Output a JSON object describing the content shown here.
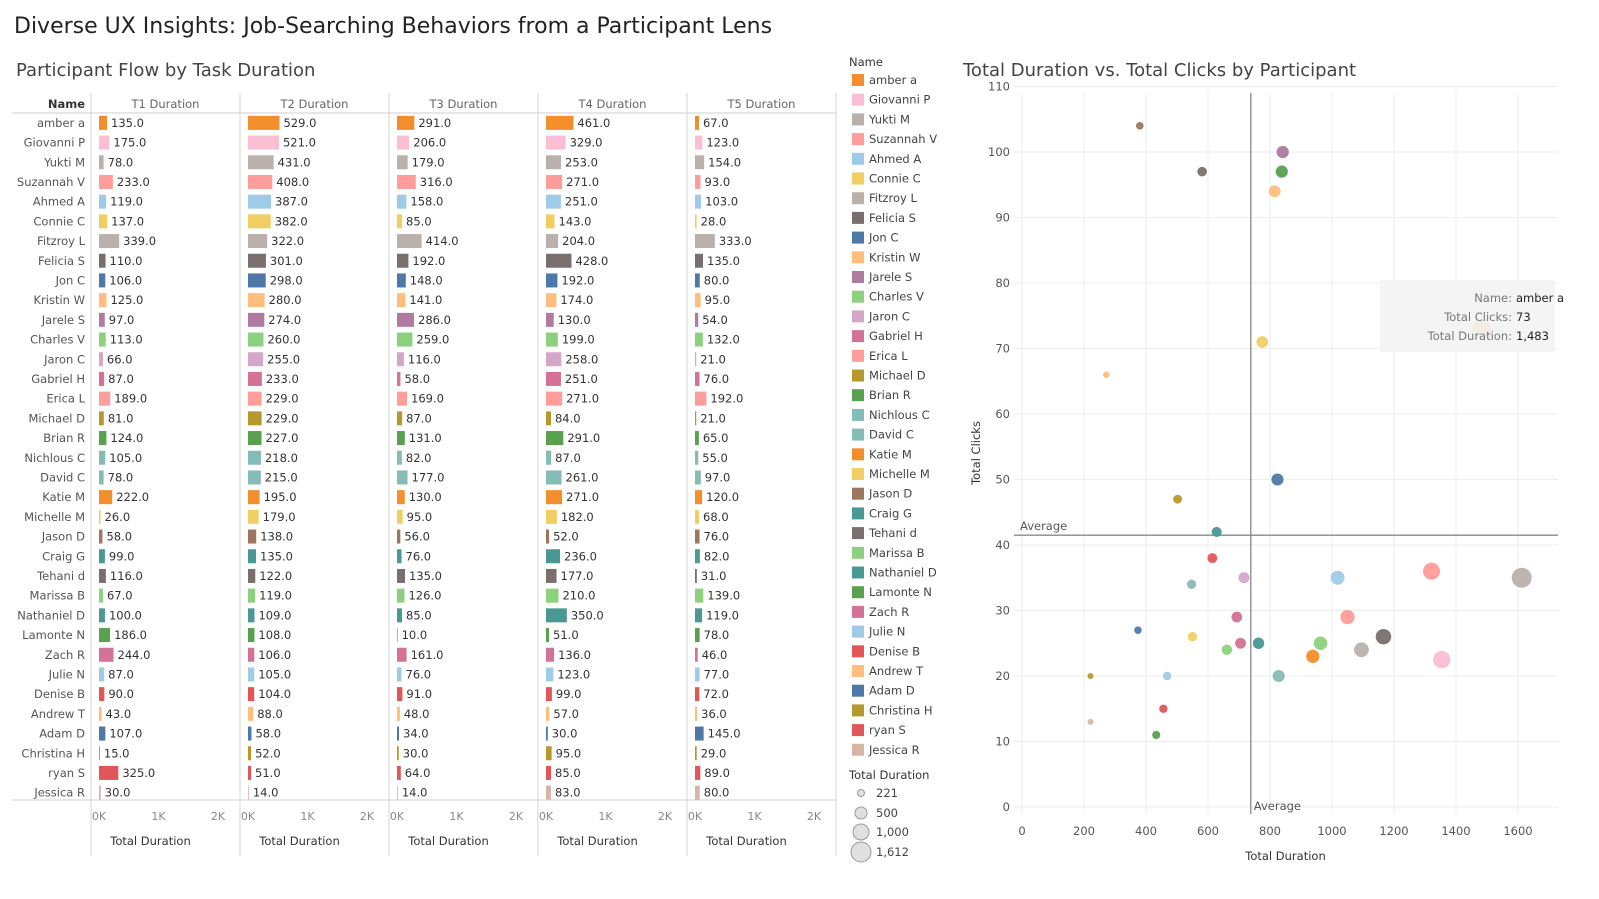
{
  "title": "Diverse UX Insights: Job-Searching Behaviors from a Participant Lens",
  "bar_title": "Participant Flow by Task Duration",
  "scatter_title": "Total Duration vs. Total Clicks by Participant",
  "legend": {
    "name_title": "Name",
    "size_title": "Total Duration",
    "size_values": [
      "221",
      "500",
      "1,000",
      "1,612"
    ]
  },
  "tooltip": {
    "name_label": "Name:",
    "name_value": "amber a",
    "clicks_label": "Total Clicks:",
    "clicks_value": "73",
    "duration_label": "Total Duration:",
    "duration_value": "1,483"
  },
  "chart_data": [
    {
      "type": "bar",
      "name_header": "Name",
      "panels": [
        "T1 Duration",
        "T2 Duration",
        "T3 Duration",
        "T4 Duration",
        "T5 Duration"
      ],
      "xlabel": "Total Duration",
      "xticks": [
        "0K",
        "1K",
        "2K"
      ],
      "xlim": [
        0,
        2300
      ],
      "categories": [
        "amber a",
        "Giovanni P",
        "Yukti M",
        "Suzannah V",
        "Ahmed A",
        "Connie C",
        "Fitzroy L",
        "Felicia S",
        "Jon C",
        "Kristin W",
        "Jarele S",
        "Charles V",
        "Jaron C",
        "Gabriel H",
        "Erica L",
        "Michael D",
        "Brian R",
        "Nichlous C",
        "David C",
        "Katie M",
        "Michelle M",
        "Jason D",
        "Craig G",
        "Tehani d",
        "Marissa B",
        "Nathaniel D",
        "Lamonte N",
        "Zach R",
        "Julie N",
        "Denise  B",
        "Andrew T",
        "Adam D",
        "Christina H",
        "ryan S",
        "Jessica R"
      ],
      "colors": [
        "#f28e2b",
        "#fabfd2",
        "#bab0ac",
        "#ff9d9a",
        "#a0cbe8",
        "#f1ce63",
        "#bab0ac",
        "#79706e",
        "#4e79a7",
        "#ffbe7d",
        "#b07aa1",
        "#8cd17d",
        "#d4a6c8",
        "#d37295",
        "#ff9d9a",
        "#b6992d",
        "#59a14f",
        "#86bcb6",
        "#86bcb6",
        "#f28e2b",
        "#f1ce63",
        "#9d7660",
        "#499894",
        "#79706e",
        "#8cd17d",
        "#499894",
        "#59a14f",
        "#d37295",
        "#a0cbe8",
        "#e15759",
        "#ffbe7d",
        "#4e79a7",
        "#b6992d",
        "#e15759",
        "#d7b5a6"
      ],
      "series": [
        {
          "name": "T1 Duration",
          "values": [
            135,
            175,
            78,
            233,
            119,
            137,
            339,
            110,
            106,
            125,
            97,
            113,
            66,
            87,
            189,
            81,
            124,
            105,
            78,
            222,
            26,
            58,
            99,
            116,
            67,
            100,
            186,
            244,
            87,
            90,
            43,
            107,
            15,
            325,
            30
          ]
        },
        {
          "name": "T2 Duration",
          "values": [
            529,
            521,
            431,
            408,
            387,
            382,
            322,
            301,
            298,
            280,
            274,
            260,
            255,
            233,
            229,
            229,
            227,
            218,
            215,
            195,
            179,
            138,
            135,
            122,
            119,
            109,
            108,
            106,
            105,
            104,
            88,
            58,
            52,
            51,
            14
          ]
        },
        {
          "name": "T3 Duration",
          "values": [
            291,
            206,
            179,
            316,
            158,
            85,
            414,
            192,
            148,
            141,
            286,
            259,
            116,
            58,
            169,
            87,
            131,
            82,
            177,
            130,
            95,
            56,
            76,
            135,
            126,
            85,
            10,
            161,
            76,
            91,
            48,
            34,
            30,
            64,
            14
          ]
        },
        {
          "name": "T4 Duration",
          "values": [
            461,
            329,
            253,
            271,
            251,
            143,
            204,
            428,
            192,
            174,
            130,
            199,
            258,
            251,
            271,
            84,
            291,
            87,
            261,
            271,
            182,
            52,
            236,
            177,
            210,
            350,
            51,
            136,
            123,
            99,
            57,
            30,
            95,
            85,
            83
          ]
        },
        {
          "name": "T5 Duration",
          "values": [
            67,
            123,
            154,
            93,
            103,
            28,
            333,
            135,
            80,
            95,
            54,
            132,
            21,
            76,
            192,
            21,
            65,
            55,
            97,
            120,
            68,
            76,
            82,
            31,
            139,
            119,
            78,
            46,
            77,
            72,
            36,
            145,
            29,
            89,
            80
          ]
        }
      ]
    },
    {
      "type": "scatter",
      "xlabel": "Total Duration",
      "ylabel": "Total Clicks",
      "xlim": [
        0,
        1700
      ],
      "ylim": [
        0,
        110
      ],
      "xticks": [
        0,
        200,
        400,
        600,
        800,
        1000,
        1200,
        1400,
        1600
      ],
      "yticks": [
        0,
        10,
        20,
        30,
        40,
        50,
        60,
        70,
        80,
        90,
        100,
        110
      ],
      "reference_lines": {
        "x_average": 738,
        "y_average": 41.5,
        "label": "Average"
      },
      "points": [
        {
          "name": "amber a",
          "x": 1483,
          "y": 73,
          "color": "#f28e2b"
        },
        {
          "name": "Giovanni P",
          "x": 1354,
          "y": 22.5,
          "color": "#fabfd2"
        },
        {
          "name": "Yukti M",
          "x": 1095,
          "y": 24,
          "color": "#bab0ac"
        },
        {
          "name": "Suzannah V",
          "x": 1321,
          "y": 36,
          "color": "#ff9d9a"
        },
        {
          "name": "Ahmed A",
          "x": 1018,
          "y": 35,
          "color": "#a0cbe8"
        },
        {
          "name": "Connie C",
          "x": 775,
          "y": 71,
          "color": "#f1ce63"
        },
        {
          "name": "Fitzroy L",
          "x": 1612,
          "y": 35,
          "color": "#bab0ac"
        },
        {
          "name": "Felicia S",
          "x": 1166,
          "y": 26,
          "color": "#79706e"
        },
        {
          "name": "Jon C",
          "x": 824,
          "y": 50,
          "color": "#4e79a7"
        },
        {
          "name": "Kristin W",
          "x": 815,
          "y": 94,
          "color": "#ffbe7d"
        },
        {
          "name": "Jarele S",
          "x": 841,
          "y": 100,
          "color": "#b07aa1"
        },
        {
          "name": "Charles V",
          "x": 963,
          "y": 25,
          "color": "#8cd17d"
        },
        {
          "name": "Jaron C",
          "x": 716,
          "y": 35,
          "color": "#d4a6c8"
        },
        {
          "name": "Gabriel H",
          "x": 705,
          "y": 25,
          "color": "#d37295"
        },
        {
          "name": "Erica L",
          "x": 1050,
          "y": 29,
          "color": "#ff9d9a"
        },
        {
          "name": "Michael D",
          "x": 502,
          "y": 47,
          "color": "#b6992d"
        },
        {
          "name": "Brian R",
          "x": 838,
          "y": 97,
          "color": "#59a14f"
        },
        {
          "name": "Nichlous C",
          "x": 547,
          "y": 34,
          "color": "#86bcb6"
        },
        {
          "name": "David C",
          "x": 828,
          "y": 20,
          "color": "#86bcb6"
        },
        {
          "name": "Katie M",
          "x": 938,
          "y": 23,
          "color": "#f28e2b"
        },
        {
          "name": "Michelle M",
          "x": 550,
          "y": 26,
          "color": "#f1ce63"
        },
        {
          "name": "Jason D",
          "x": 380,
          "y": 104,
          "color": "#9d7660"
        },
        {
          "name": "Craig G",
          "x": 628,
          "y": 42,
          "color": "#499894"
        },
        {
          "name": "Tehani d",
          "x": 581,
          "y": 97,
          "color": "#79706e"
        },
        {
          "name": "Marissa B",
          "x": 661,
          "y": 24,
          "color": "#8cd17d"
        },
        {
          "name": "Nathaniel D",
          "x": 763,
          "y": 25,
          "color": "#499894"
        },
        {
          "name": "Lamonte N",
          "x": 433,
          "y": 11,
          "color": "#59a14f"
        },
        {
          "name": "Zach R",
          "x": 693,
          "y": 29,
          "color": "#d37295"
        },
        {
          "name": "Julie N",
          "x": 468,
          "y": 20,
          "color": "#a0cbe8"
        },
        {
          "name": "Denise  B",
          "x": 456,
          "y": 15,
          "color": "#e15759"
        },
        {
          "name": "Andrew T",
          "x": 272,
          "y": 66,
          "color": "#ffbe7d"
        },
        {
          "name": "Adam D",
          "x": 374,
          "y": 27,
          "color": "#4e79a7"
        },
        {
          "name": "Christina H",
          "x": 221,
          "y": 20,
          "color": "#b6992d"
        },
        {
          "name": "ryan S",
          "x": 614,
          "y": 38,
          "color": "#e15759"
        },
        {
          "name": "Jessica R",
          "x": 221,
          "y": 13,
          "color": "#d7b5a6"
        }
      ]
    }
  ]
}
